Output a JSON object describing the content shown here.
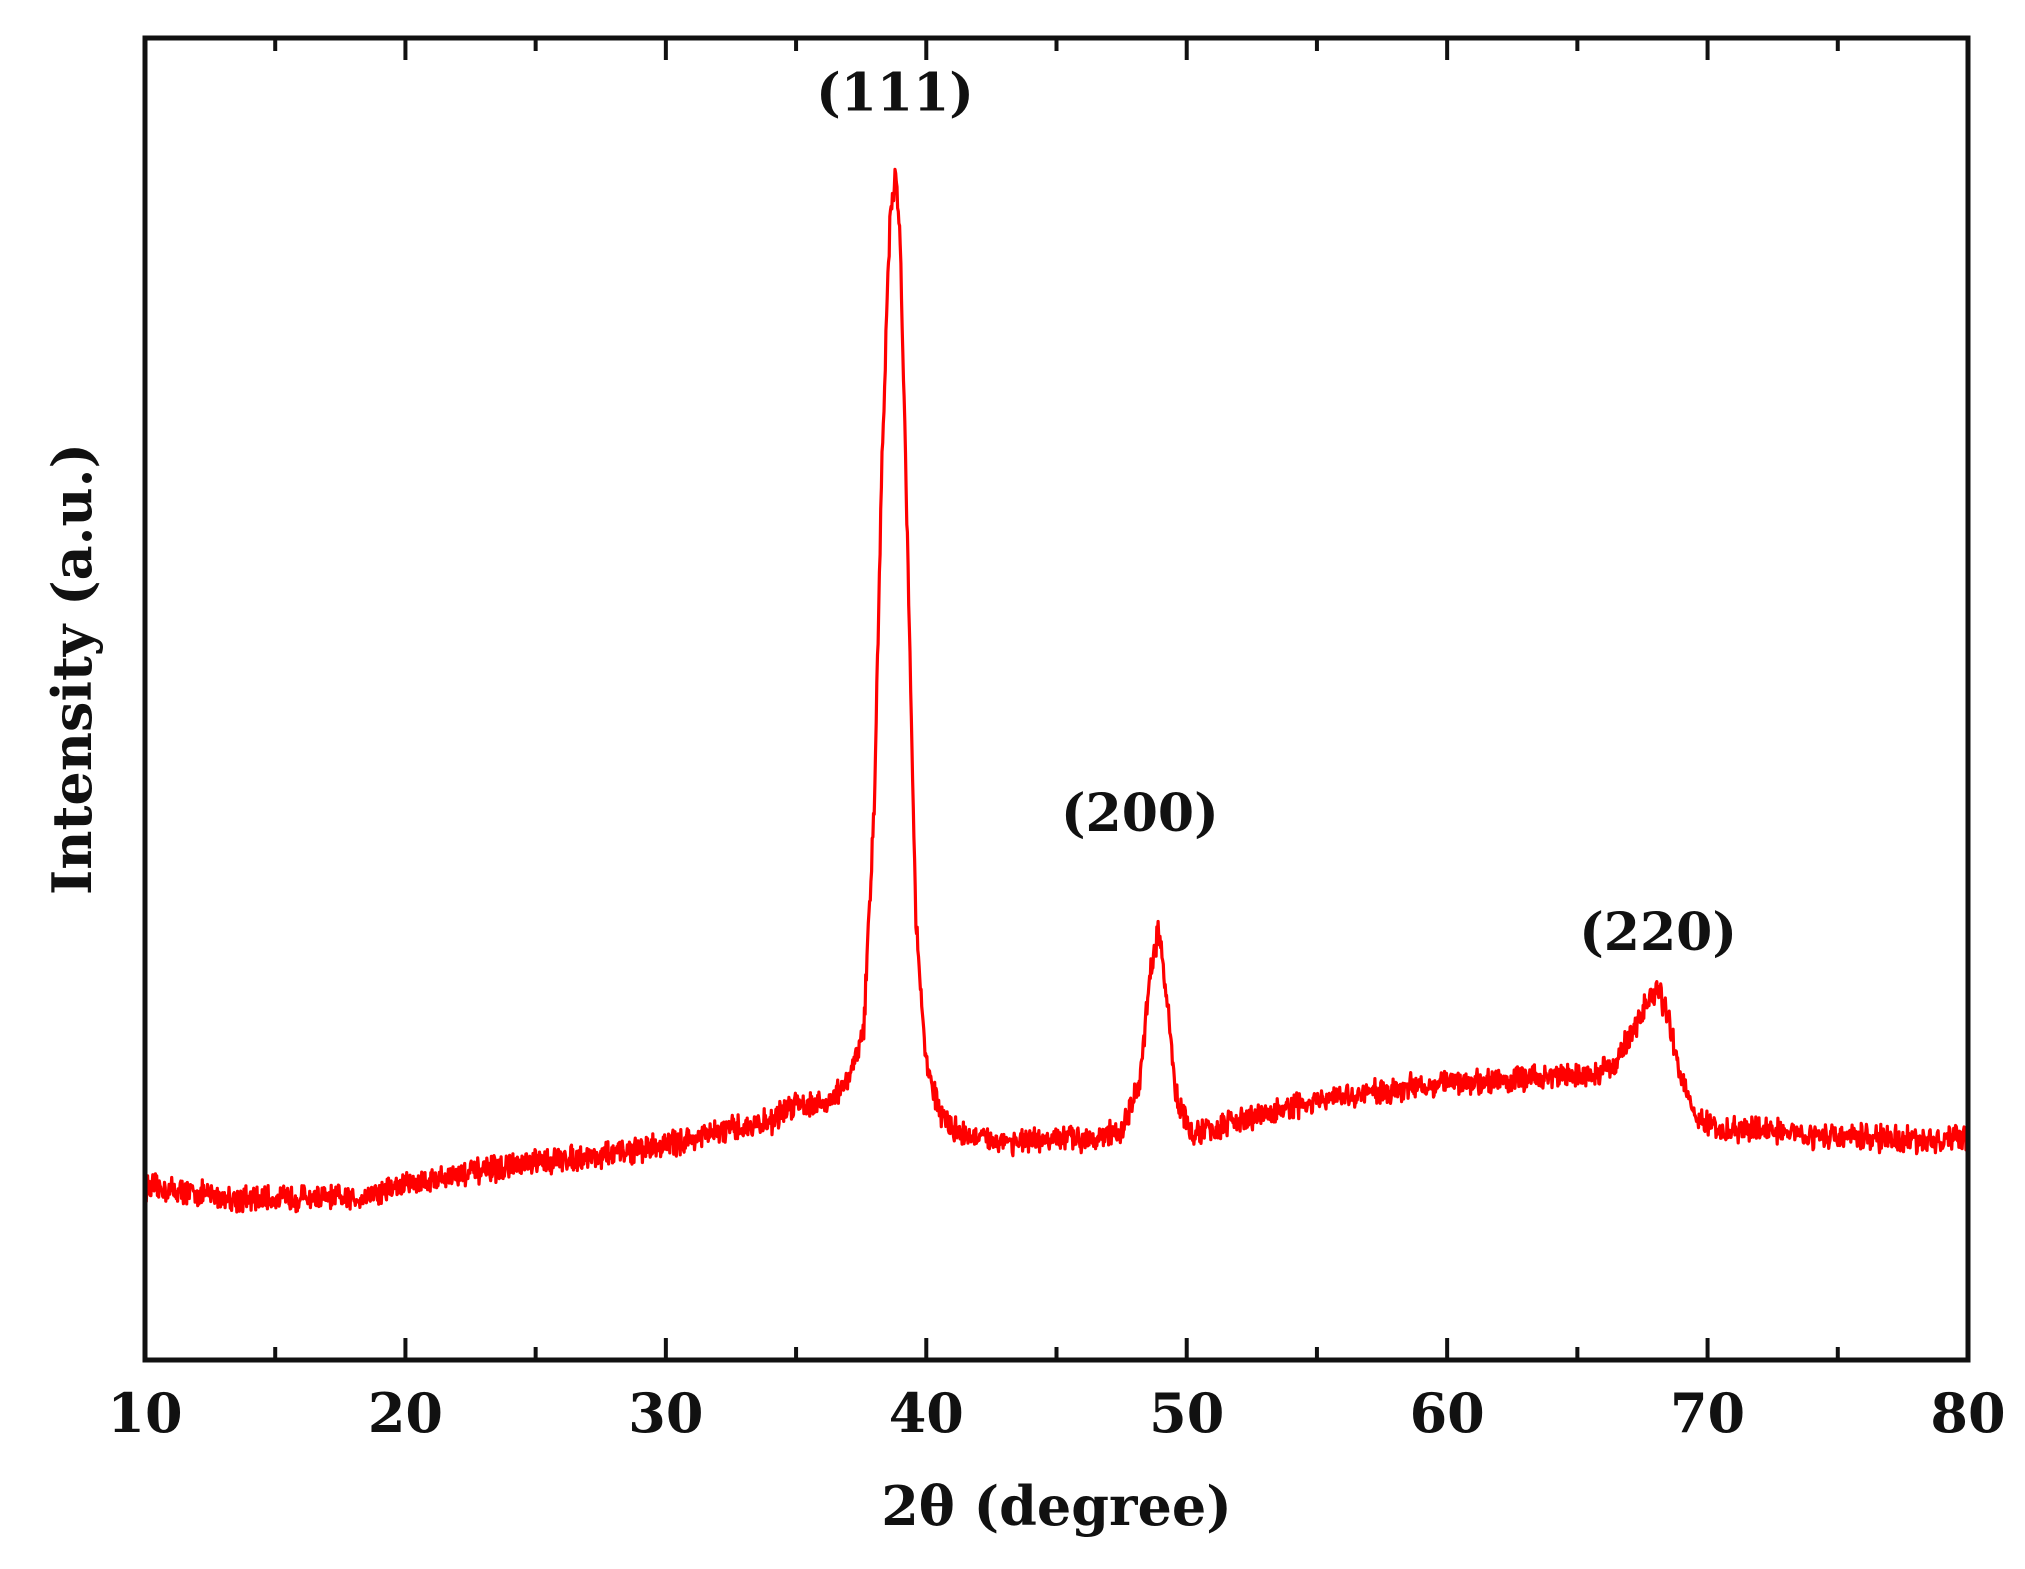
{
  "chart_data": {
    "type": "line",
    "xlabel": "2θ (degree)",
    "ylabel": "Intensity (a.u.)",
    "xlim": [
      10,
      80
    ],
    "ylim": [
      0,
      100
    ],
    "xticks": [
      10,
      20,
      30,
      40,
      50,
      60,
      70,
      80
    ],
    "x_minor_step": 5,
    "y_ticks_labeled": false,
    "grid": false,
    "legend": "none",
    "series": [
      {
        "color": "#ff0000",
        "x": [
          10,
          12,
          14,
          16,
          18,
          20,
          22,
          24,
          26,
          28,
          30,
          32,
          34,
          35,
          36,
          37,
          37.6,
          38.0,
          38.3,
          38.6,
          38.8,
          39.0,
          39.3,
          39.6,
          40.0,
          40.5,
          41,
          42,
          44,
          46,
          47.5,
          48.2,
          48.6,
          48.9,
          49.2,
          49.6,
          50.2,
          51,
          53,
          55,
          58,
          60,
          62,
          64,
          65.5,
          66.5,
          67.3,
          67.8,
          68.1,
          68.4,
          68.9,
          69.6,
          70.5,
          72,
          74,
          76,
          78,
          80
        ],
        "y": [
          13.1,
          12.6,
          12.1,
          12.3,
          12.2,
          13.3,
          14.0,
          14.6,
          15.2,
          15.6,
          16.3,
          17.2,
          18.0,
          19.5,
          19.3,
          21.0,
          25.0,
          42.0,
          68.0,
          86.0,
          89.5,
          85.0,
          60.0,
          33.0,
          22.5,
          18.8,
          17.5,
          16.7,
          16.5,
          16.8,
          17.2,
          21.0,
          29.0,
          32.5,
          28.0,
          20.0,
          17.0,
          17.5,
          18.6,
          19.5,
          20.5,
          21.0,
          21.1,
          21.5,
          21.5,
          22.5,
          25.5,
          27.5,
          28.0,
          26.5,
          22.0,
          18.3,
          17.2,
          17.5,
          17.0,
          16.8,
          16.6,
          16.7
        ]
      }
    ],
    "annotations": [
      {
        "text": "(111)",
        "x": 38.8,
        "y": 94.5
      },
      {
        "text": "(200)",
        "x": 48.2,
        "y": 40.0
      },
      {
        "text": "(220)",
        "x": 68.1,
        "y": 31.0
      }
    ]
  }
}
